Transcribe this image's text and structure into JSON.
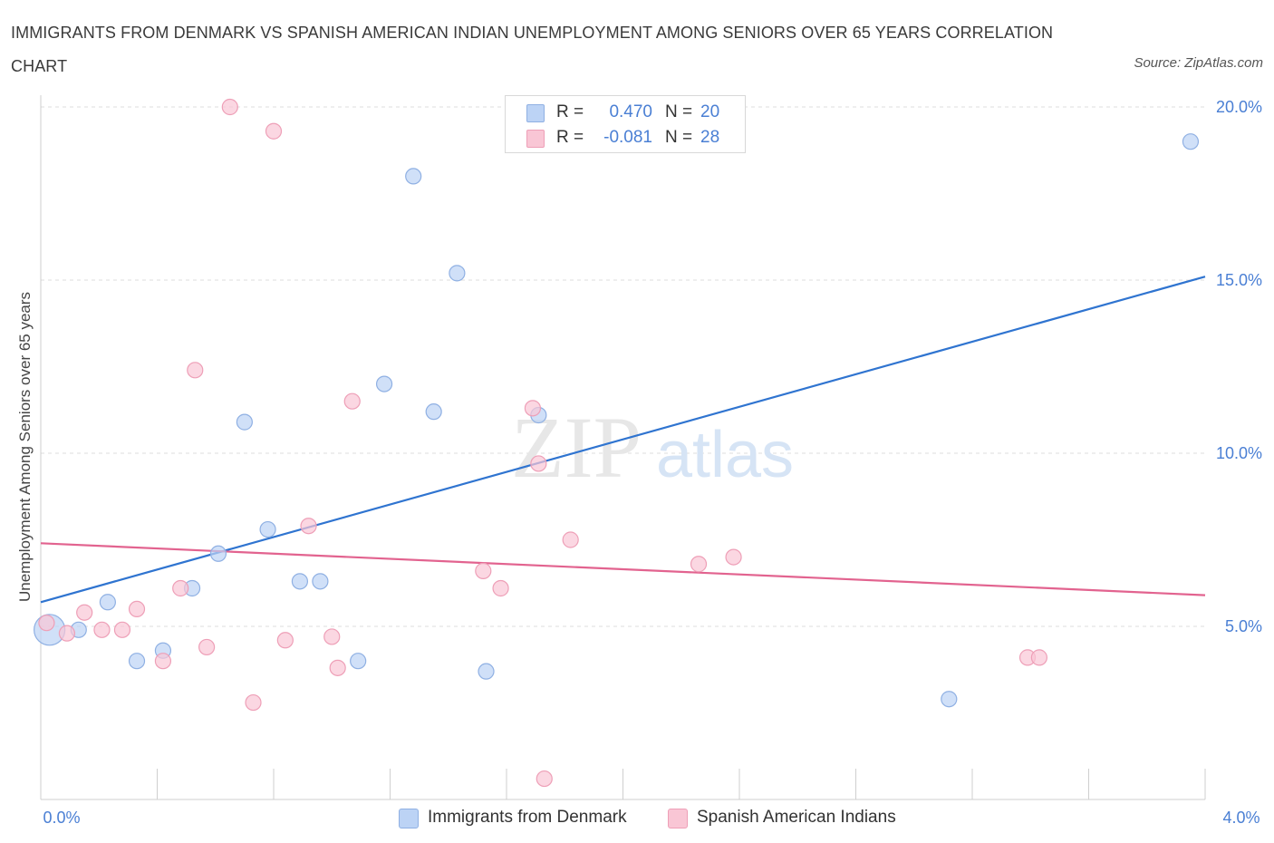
{
  "title": "IMMIGRANTS FROM DENMARK VS SPANISH AMERICAN INDIAN UNEMPLOYMENT AMONG SENIORS OVER 65 YEARS CORRELATION CHART",
  "source": "Source: ZipAtlas.com",
  "watermark": {
    "zip": "ZIP",
    "atlas": "atlas"
  },
  "stats": [
    {
      "r_label": "R =",
      "r_value": "0.470",
      "n_label": "N =",
      "n_value": "20"
    },
    {
      "r_label": "R =",
      "r_value": "-0.081",
      "n_label": "N =",
      "n_value": "28"
    }
  ],
  "legend": [
    {
      "label": "Immigrants from Denmark"
    },
    {
      "label": "Spanish American Indians"
    }
  ],
  "colors": {
    "blue_fill": "#bcd3f5",
    "blue_stroke": "#8fb0e3",
    "blue_line": "#2f74d0",
    "pink_fill": "#f9c6d5",
    "pink_stroke": "#ee9fb7",
    "pink_line": "#e2638f",
    "grid": "#dcdcdc",
    "axis_text": "#4a7fd4"
  },
  "chart_data": {
    "type": "scatter",
    "title": "IMMIGRANTS FROM DENMARK VS SPANISH AMERICAN INDIAN UNEMPLOYMENT AMONG SENIORS OVER 65 YEARS CORRELATION CHART",
    "xlabel": "",
    "ylabel": "Unemployment Among Seniors over 65 years",
    "xlim": [
      0,
      4
    ],
    "ylim": [
      0,
      20
    ],
    "x_tick_labels": [
      {
        "value": 0,
        "label": "0.0%"
      },
      {
        "value": 4,
        "label": "4.0%"
      }
    ],
    "y_tick_labels": [
      {
        "value": 5,
        "label": "5.0%"
      },
      {
        "value": 10,
        "label": "10.0%"
      },
      {
        "value": 15,
        "label": "15.0%"
      },
      {
        "value": 20,
        "label": "20.0%"
      }
    ],
    "series": [
      {
        "name": "Immigrants from Denmark",
        "color": "blue",
        "points": [
          {
            "x": 0.03,
            "y": 4.9,
            "big": true
          },
          {
            "x": 0.13,
            "y": 4.9
          },
          {
            "x": 0.23,
            "y": 5.7
          },
          {
            "x": 0.33,
            "y": 4.0
          },
          {
            "x": 0.42,
            "y": 4.3
          },
          {
            "x": 0.52,
            "y": 6.1
          },
          {
            "x": 0.61,
            "y": 7.1
          },
          {
            "x": 0.7,
            "y": 10.9
          },
          {
            "x": 0.78,
            "y": 7.8
          },
          {
            "x": 0.89,
            "y": 6.3
          },
          {
            "x": 0.96,
            "y": 6.3
          },
          {
            "x": 1.09,
            "y": 4.0
          },
          {
            "x": 1.18,
            "y": 12.0
          },
          {
            "x": 1.28,
            "y": 18.0
          },
          {
            "x": 1.35,
            "y": 11.2
          },
          {
            "x": 1.43,
            "y": 15.2
          },
          {
            "x": 1.53,
            "y": 3.7
          },
          {
            "x": 1.71,
            "y": 11.1
          },
          {
            "x": 3.12,
            "y": 2.9
          },
          {
            "x": 3.95,
            "y": 19.0
          }
        ],
        "trend": {
          "x0": 0,
          "y0": 5.7,
          "x1": 4,
          "y1": 15.1
        }
      },
      {
        "name": "Spanish American Indians",
        "color": "pink",
        "points": [
          {
            "x": 0.02,
            "y": 5.1
          },
          {
            "x": 0.09,
            "y": 4.8
          },
          {
            "x": 0.15,
            "y": 5.4
          },
          {
            "x": 0.21,
            "y": 4.9
          },
          {
            "x": 0.28,
            "y": 4.9
          },
          {
            "x": 0.33,
            "y": 5.5
          },
          {
            "x": 0.42,
            "y": 4.0
          },
          {
            "x": 0.48,
            "y": 6.1
          },
          {
            "x": 0.53,
            "y": 12.4
          },
          {
            "x": 0.57,
            "y": 4.4
          },
          {
            "x": 0.65,
            "y": 20.0
          },
          {
            "x": 0.73,
            "y": 2.8
          },
          {
            "x": 0.8,
            "y": 19.3
          },
          {
            "x": 0.84,
            "y": 4.6
          },
          {
            "x": 0.92,
            "y": 7.9
          },
          {
            "x": 1.0,
            "y": 4.7
          },
          {
            "x": 1.02,
            "y": 3.8
          },
          {
            "x": 1.07,
            "y": 11.5
          },
          {
            "x": 1.52,
            "y": 6.6
          },
          {
            "x": 1.58,
            "y": 6.1
          },
          {
            "x": 1.69,
            "y": 11.3
          },
          {
            "x": 1.71,
            "y": 9.7
          },
          {
            "x": 1.73,
            "y": 0.6
          },
          {
            "x": 1.82,
            "y": 7.5
          },
          {
            "x": 2.26,
            "y": 6.8
          },
          {
            "x": 2.38,
            "y": 7.0
          },
          {
            "x": 3.39,
            "y": 4.1
          },
          {
            "x": 3.43,
            "y": 4.1
          }
        ],
        "trend": {
          "x0": 0,
          "y0": 7.4,
          "x1": 4,
          "y1": 5.9
        }
      }
    ]
  }
}
